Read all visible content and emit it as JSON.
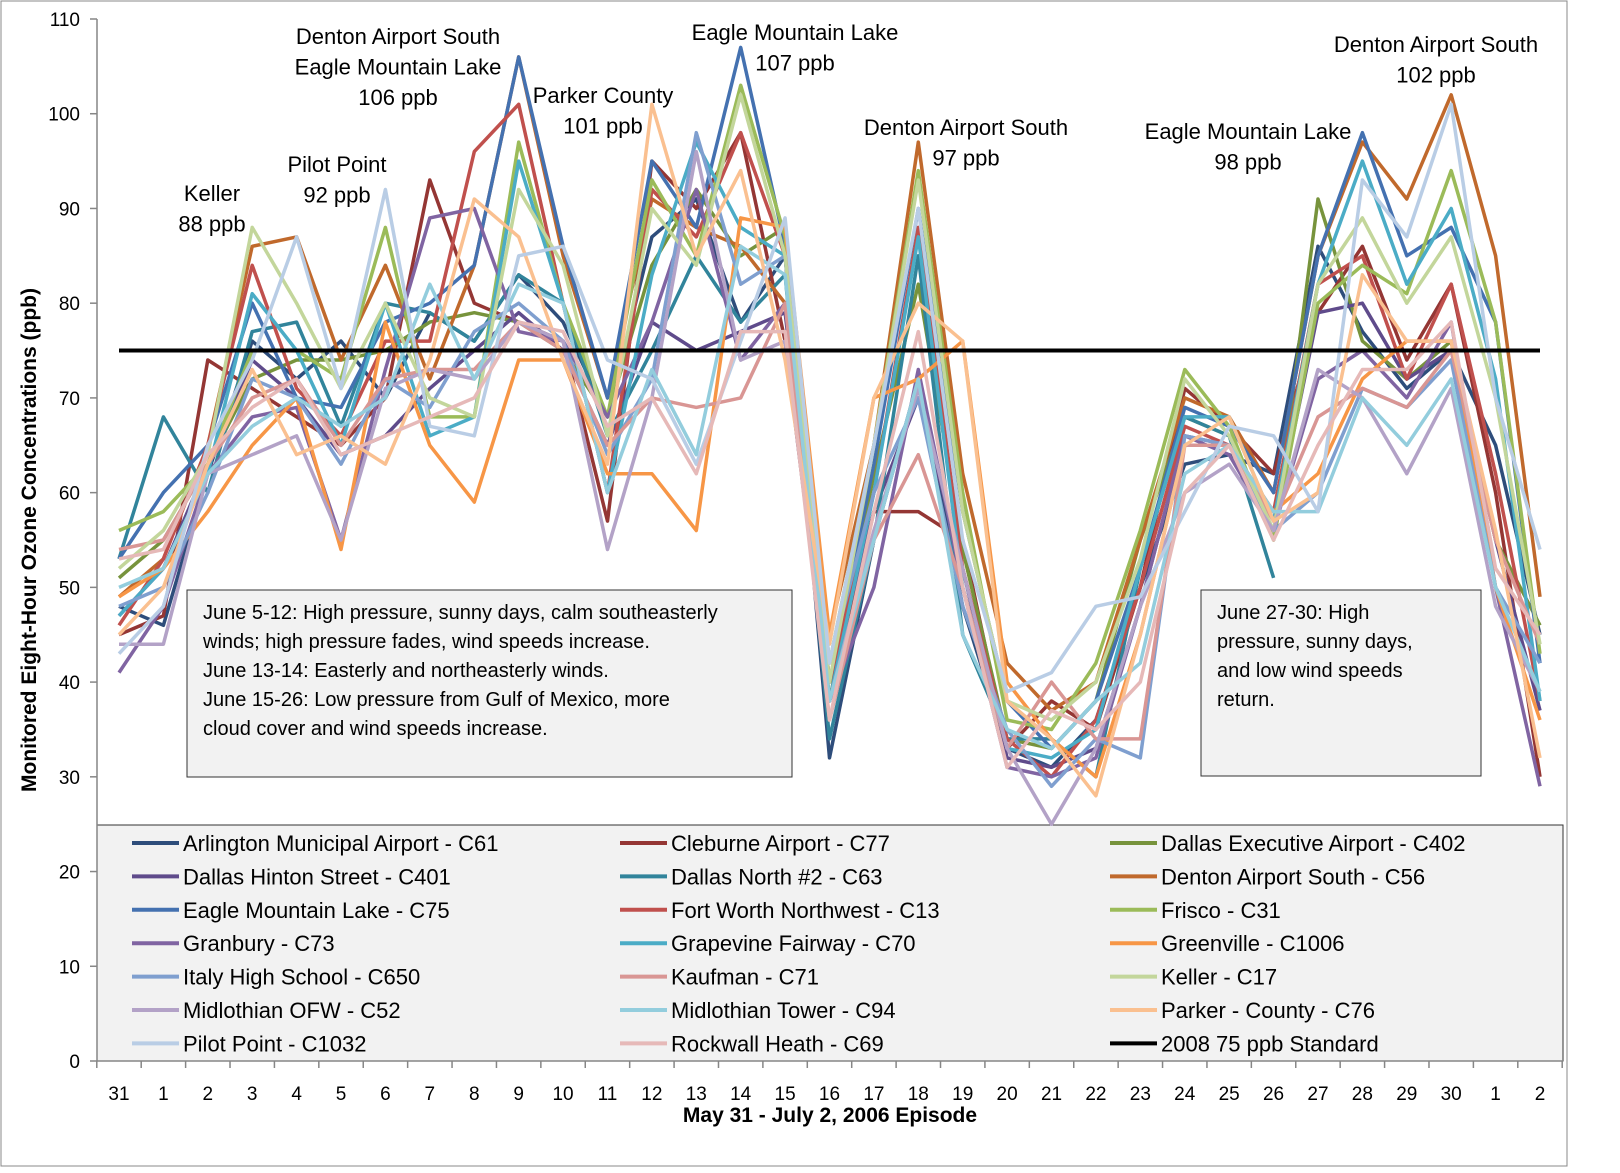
{
  "chart_data": {
    "type": "line",
    "y_label": "Monitored Eight-Hour Ozone Concentrations (ppb)",
    "x_label": "May 31 - July 2, 2006 Episode",
    "categories": [
      "31",
      "1",
      "2",
      "3",
      "4",
      "5",
      "6",
      "7",
      "8",
      "9",
      "10",
      "11",
      "12",
      "13",
      "14",
      "15",
      "16",
      "17",
      "18",
      "19",
      "20",
      "21",
      "22",
      "23",
      "24",
      "25",
      "26",
      "27",
      "28",
      "29",
      "30",
      "1",
      "2"
    ],
    "ylim": [
      0,
      110
    ],
    "yticks": [
      0,
      10,
      20,
      30,
      40,
      50,
      60,
      70,
      80,
      90,
      100,
      110
    ],
    "series": [
      {
        "name": "Arlington Municipal Airport - C61",
        "color": "#2e4d7b",
        "values": [
          48,
          46,
          62,
          76,
          72,
          76,
          70,
          79,
          76,
          83,
          78,
          68,
          87,
          91,
          78,
          85,
          32,
          55,
          72,
          48,
          33,
          31,
          36,
          50,
          63,
          64,
          62,
          86,
          77,
          71,
          75,
          65,
          45
        ]
      },
      {
        "name": "Cleburne Airport - C77",
        "color": "#943634",
        "values": [
          45,
          47,
          74,
          71,
          68,
          65,
          70,
          93,
          80,
          78,
          76,
          57,
          95,
          90,
          98,
          76,
          38,
          58,
          58,
          55,
          33,
          38,
          35,
          50,
          71,
          67,
          62,
          79,
          86,
          74,
          82,
          60,
          30
        ]
      },
      {
        "name": "Dallas Executive Airport - C402",
        "color": "#77933c",
        "values": [
          51,
          55,
          63,
          72,
          74,
          74,
          75,
          78,
          79,
          78,
          75,
          68,
          84,
          92,
          85,
          88,
          38,
          62,
          82,
          54,
          34,
          33,
          38,
          55,
          68,
          66,
          55,
          91,
          76,
          72,
          76,
          55,
          46
        ]
      },
      {
        "name": "Dallas Hinton Street - C401",
        "color": "#5f4b8b",
        "values": [
          47,
          52,
          63,
          74,
          70,
          64,
          66,
          71,
          75,
          79,
          75,
          65,
          78,
          75,
          77,
          79,
          40,
          58,
          70,
          52,
          32,
          31,
          33,
          48,
          66,
          65,
          56,
          79,
          80,
          72,
          75,
          55,
          37
        ]
      },
      {
        "name": "Dallas North #2 - C63",
        "color": "#31849b",
        "values": [
          53,
          68,
          60,
          77,
          78,
          67,
          80,
          79,
          76,
          83,
          80,
          66,
          75,
          85,
          78,
          83,
          34,
          55,
          85,
          45,
          34,
          34,
          30,
          52,
          68,
          66,
          51,
          null,
          null,
          null,
          null,
          null,
          null
        ]
      },
      {
        "name": "Denton Airport South - C56",
        "color": "#c0692c",
        "values": [
          49,
          53,
          65,
          86,
          87,
          74,
          84,
          72,
          84,
          106,
          85,
          70,
          91,
          88,
          86,
          80,
          45,
          65,
          97,
          62,
          42,
          37,
          40,
          55,
          70,
          68,
          60,
          85,
          97,
          91,
          102,
          85,
          49
        ]
      },
      {
        "name": "Eagle Mountain Lake - C75",
        "color": "#4471b0",
        "values": [
          53,
          60,
          65,
          80,
          70,
          69,
          78,
          80,
          84,
          106,
          86,
          70,
          95,
          88,
          107,
          86,
          40,
          63,
          90,
          58,
          38,
          33,
          38,
          52,
          69,
          67,
          60,
          85,
          98,
          85,
          88,
          78,
          42
        ]
      },
      {
        "name": "Fort Worth Northwest - C13",
        "color": "#c0504d",
        "values": [
          46,
          53,
          65,
          84,
          71,
          66,
          76,
          76,
          96,
          101,
          80,
          60,
          92,
          87,
          98,
          85,
          40,
          60,
          88,
          52,
          34,
          30,
          36,
          50,
          67,
          65,
          58,
          82,
          85,
          72,
          82,
          62,
          38
        ]
      },
      {
        "name": "Frisco  - C31",
        "color": "#9bbb59",
        "values": [
          56,
          58,
          63,
          75,
          75,
          72,
          88,
          68,
          68,
          97,
          80,
          68,
          93,
          85,
          103,
          87,
          42,
          65,
          94,
          60,
          36,
          35,
          42,
          56,
          73,
          67,
          55,
          80,
          84,
          81,
          94,
          78,
          43
        ]
      },
      {
        "name": "Granbury - C73",
        "color": "#8064a2",
        "values": [
          41,
          48,
          62,
          68,
          69,
          55,
          73,
          89,
          90,
          77,
          76,
          68,
          78,
          92,
          74,
          80,
          38,
          50,
          73,
          50,
          31,
          30,
          32,
          48,
          66,
          64,
          56,
          72,
          75,
          70,
          78,
          50,
          29
        ]
      },
      {
        "name": "Grapevine Fairway - C70",
        "color": "#4bacc6",
        "values": [
          47,
          52,
          62,
          81,
          75,
          65,
          80,
          66,
          68,
          95,
          80,
          60,
          83,
          97,
          88,
          85,
          38,
          60,
          87,
          50,
          33,
          32,
          35,
          52,
          68,
          68,
          57,
          82,
          95,
          82,
          90,
          72,
          38
        ]
      },
      {
        "name": "Greenville - C1006",
        "color": "#f79646",
        "values": [
          49,
          52,
          58,
          65,
          70,
          54,
          78,
          65,
          59,
          74,
          74,
          62,
          62,
          56,
          89,
          88,
          45,
          70,
          72,
          76,
          40,
          34,
          30,
          45,
          65,
          65,
          58,
          62,
          72,
          76,
          76,
          50,
          36
        ]
      },
      {
        "name": "Italy High School - C650",
        "color": "#7f9fcf",
        "values": [
          48,
          50,
          60,
          72,
          70,
          63,
          72,
          69,
          77,
          80,
          76,
          64,
          72,
          98,
          82,
          85,
          42,
          60,
          70,
          48,
          35,
          29,
          34,
          32,
          66,
          65,
          56,
          60,
          71,
          69,
          74,
          50,
          42
        ]
      },
      {
        "name": "Kaufman - C71",
        "color": "#d99694",
        "values": [
          54,
          55,
          63,
          70,
          72,
          65,
          72,
          73,
          73,
          78,
          75,
          65,
          70,
          69,
          70,
          80,
          36,
          55,
          64,
          50,
          33,
          40,
          34,
          34,
          65,
          65,
          57,
          68,
          71,
          69,
          75,
          55,
          44
        ]
      },
      {
        "name": "Keller - C17",
        "color": "#c3d69b",
        "values": [
          52,
          56,
          64,
          88,
          80,
          71,
          80,
          70,
          68,
          92,
          84,
          66,
          90,
          84,
          102,
          85,
          40,
          65,
          93,
          58,
          38,
          36,
          40,
          53,
          72,
          66,
          56,
          82,
          89,
          80,
          87,
          70,
          44
        ]
      },
      {
        "name": "Midlothian OFW - C52",
        "color": "#b3a2c7",
        "values": [
          44,
          44,
          62,
          64,
          66,
          55,
          71,
          73,
          72,
          78,
          76,
          54,
          70,
          96,
          74,
          76,
          38,
          56,
          71,
          52,
          33,
          25,
          33,
          48,
          60,
          63,
          56,
          73,
          70,
          62,
          71,
          48,
          39
        ]
      },
      {
        "name": "Midlothian Tower - C94",
        "color": "#93cddd",
        "values": [
          50,
          52,
          62,
          67,
          70,
          67,
          70,
          82,
          72,
          82,
          80,
          60,
          73,
          64,
          86,
          83,
          38,
          55,
          72,
          45,
          35,
          33,
          38,
          42,
          62,
          65,
          58,
          58,
          70,
          65,
          72,
          50,
          39
        ]
      },
      {
        "name": "Parker - County - C76",
        "color": "#fac090",
        "values": [
          45,
          50,
          63,
          73,
          64,
          66,
          63,
          74,
          91,
          87,
          74,
          63,
          101,
          85,
          94,
          74,
          44,
          70,
          80,
          76,
          38,
          34,
          28,
          45,
          65,
          68,
          57,
          60,
          83,
          76,
          76,
          56,
          32
        ]
      },
      {
        "name": "Pilot Point - C1032",
        "color": "#b9cde5",
        "values": [
          43,
          48,
          65,
          74,
          87,
          71,
          92,
          67,
          66,
          85,
          86,
          74,
          72,
          63,
          76,
          89,
          42,
          65,
          90,
          55,
          39,
          41,
          48,
          49,
          58,
          67,
          66,
          58,
          93,
          87,
          101,
          70,
          54
        ]
      },
      {
        "name": "Rockwall Heath - C69",
        "color": "#e6b9b8",
        "values": [
          53,
          54,
          64,
          69,
          72,
          64,
          66,
          68,
          70,
          78,
          77,
          67,
          70,
          62,
          77,
          77,
          36,
          58,
          77,
          50,
          31,
          37,
          35,
          40,
          60,
          65,
          55,
          65,
          73,
          73,
          78,
          52,
          45
        ]
      },
      {
        "name": "2008 75 ppb Standard",
        "color": "#000000",
        "values": [
          75,
          75,
          75,
          75,
          75,
          75,
          75,
          75,
          75,
          75,
          75,
          75,
          75,
          75,
          75,
          75,
          75,
          75,
          75,
          75,
          75,
          75,
          75,
          75,
          75,
          75,
          75,
          75,
          75,
          75,
          75,
          75,
          75
        ]
      }
    ],
    "annotations": [
      [
        "Keller",
        "88 ppb"
      ],
      [
        "Pilot Point",
        "92 ppb"
      ],
      [
        "Denton Airport South",
        "Eagle Mountain Lake",
        "106 ppb"
      ],
      [
        "Parker County",
        "101 ppb"
      ],
      [
        "Eagle Mountain Lake",
        "107 ppb"
      ],
      [
        "Denton Airport South",
        "97 ppb"
      ],
      [
        "Eagle Mountain Lake",
        "98 ppb"
      ],
      [
        "Denton Airport South",
        "102 ppb"
      ]
    ],
    "notes": [
      [
        "June 5-12:  High pressure, sunny days, calm southeasterly",
        "winds; high pressure fades, wind speeds increase.",
        "June 13-14:  Easterly and northeasterly winds.",
        "June 15-26:  Low pressure from Gulf of Mexico, more",
        "cloud cover and wind speeds increase."
      ],
      [
        "June 27-30:  High",
        "pressure, sunny days,",
        "and low wind speeds",
        "return."
      ]
    ]
  }
}
